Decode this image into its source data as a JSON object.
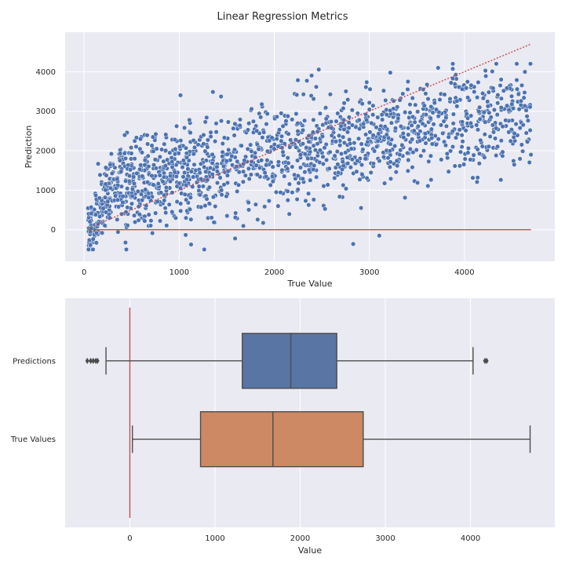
{
  "figure": {
    "title": "Linear Regression Metrics"
  },
  "colors": {
    "panel_bg": "#eaeaf2",
    "grid": "#ffffff",
    "points": "#4c72b0",
    "reference": "#c44e52",
    "box_predictions": "#5875a4",
    "box_true_values": "#cc8963",
    "box_edge": "#4d4d4d"
  },
  "chart_data": [
    {
      "type": "scatter",
      "xlabel": "True Value",
      "ylabel": "Prediction",
      "xlim": [
        -200,
        4950
      ],
      "ylim": [
        -800,
        5000
      ],
      "xticks": [
        0,
        1000,
        2000,
        3000,
        4000
      ],
      "yticks": [
        0,
        1000,
        2000,
        3000,
        4000
      ],
      "grid": true,
      "n_points": 1600,
      "trend_description": "predictions increase with true value, roughly pred = 300 + 0.55 * true, spread about +/- 700",
      "x_range": [
        40,
        4700
      ],
      "y_range": [
        -500,
        4200
      ],
      "reference_lines": [
        {
          "style": "dotted",
          "color": "#c44e52",
          "x": [
            40,
            4700
          ],
          "y": [
            40,
            4700
          ],
          "meaning": "y = x"
        },
        {
          "style": "solid",
          "color": "#c44e52",
          "x": [
            40,
            4700
          ],
          "y": [
            0,
            0
          ],
          "meaning": "y = 0"
        }
      ]
    },
    {
      "type": "box",
      "orientation": "horizontal",
      "xlabel": "Value",
      "ylabel": "",
      "xlim": [
        -760,
        4990
      ],
      "xticks": [
        0,
        1000,
        2000,
        3000,
        4000
      ],
      "grid": true,
      "reference_line": {
        "x": 0,
        "color": "#c44e52"
      },
      "series": [
        {
          "name": "Predictions",
          "whisker_low": -280,
          "q1": 1320,
          "median": 1890,
          "q3": 2430,
          "whisker_high": 4030,
          "outliers": [
            -500,
            -460,
            -430,
            -400,
            -380,
            4170,
            4190
          ],
          "color": "#5875a4"
        },
        {
          "name": "True Values",
          "whisker_low": 30,
          "q1": 830,
          "median": 1680,
          "q3": 2740,
          "whisker_high": 4700,
          "outliers": [],
          "color": "#cc8963"
        }
      ]
    }
  ]
}
